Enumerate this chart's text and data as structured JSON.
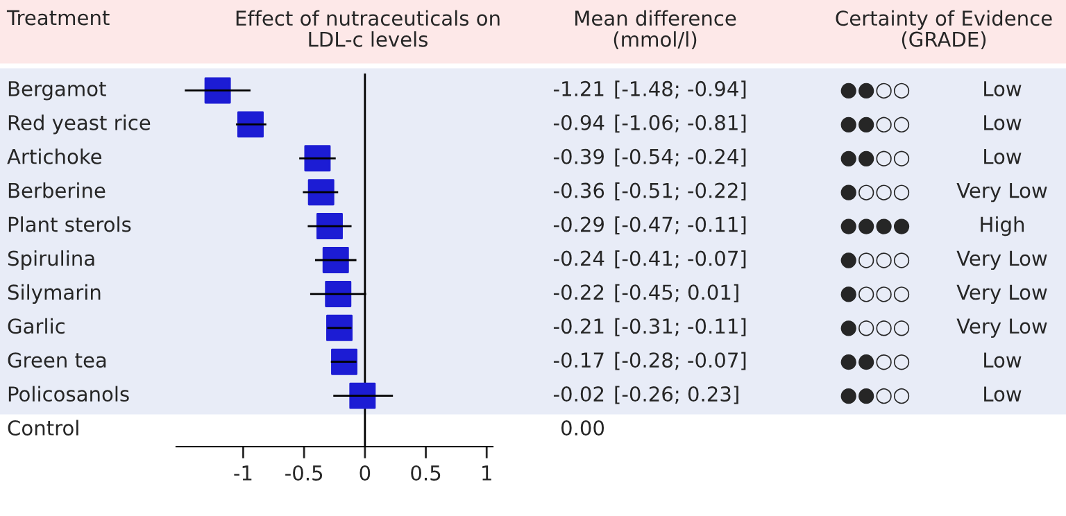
{
  "chart_data": {
    "type": "scatter",
    "orientation": "horizontal",
    "title": "Effect of nutraceuticals on\nLDL-c levels",
    "categories": [
      "Bergamot",
      "Red yeast rice",
      "Artichoke",
      "Berberine",
      "Plant sterols",
      "Spirulina",
      "Silymarin",
      "Garlic",
      "Green tea",
      "Policosanols",
      "Control"
    ],
    "values": [
      -1.21,
      -0.94,
      -0.39,
      -0.36,
      -0.29,
      -0.24,
      -0.22,
      -0.21,
      -0.17,
      -0.02,
      null
    ],
    "value_labels": [
      "-1.21",
      "-0.94",
      "-0.39",
      "-0.36",
      "-0.29",
      "-0.24",
      "-0.22",
      "-0.21",
      "-0.17",
      "-0.02",
      "0.00"
    ],
    "errors": [
      [
        -1.48,
        -0.94
      ],
      [
        -1.06,
        -0.81
      ],
      [
        -0.54,
        -0.24
      ],
      [
        -0.51,
        -0.22
      ],
      [
        -0.47,
        -0.11
      ],
      [
        -0.41,
        -0.07
      ],
      [
        -0.45,
        0.01
      ],
      [
        -0.31,
        -0.11
      ],
      [
        -0.28,
        -0.07
      ],
      [
        -0.26,
        0.23
      ],
      null
    ],
    "color": "#1c1cd4",
    "marker": "square",
    "xlim": [
      -1.55,
      1.05
    ],
    "xticks": [
      -1,
      -0.5,
      0,
      0.5,
      1
    ],
    "ref_lines": [
      {
        "axis": "x",
        "value": 0,
        "color": "#000000"
      }
    ],
    "grid": false,
    "annotations": [
      "Treatment",
      "Mean difference\n(mmol/l)",
      "Certainty of Evidence\n(GRADE)",
      "[-1.48; -0.94]",
      "[-1.06; -0.81]",
      "[-0.54; -0.24]",
      "[-0.51; -0.22]",
      "[-0.47; -0.11]",
      "[-0.41; -0.07]",
      "[-0.45; 0.01]",
      "[-0.31; -0.11]",
      "[-0.28; -0.07]",
      "[-0.26; 0.23]",
      "●●○○",
      "●●○○",
      "●●○○",
      "●○○○",
      "●●●●",
      "●○○○",
      "●○○○",
      "●○○○",
      "●●○○",
      "●●○○",
      "Low",
      "Low",
      "Low",
      "Very Low",
      "High",
      "Very Low",
      "Very Low",
      "Very Low",
      "Low",
      "Low"
    ]
  }
}
